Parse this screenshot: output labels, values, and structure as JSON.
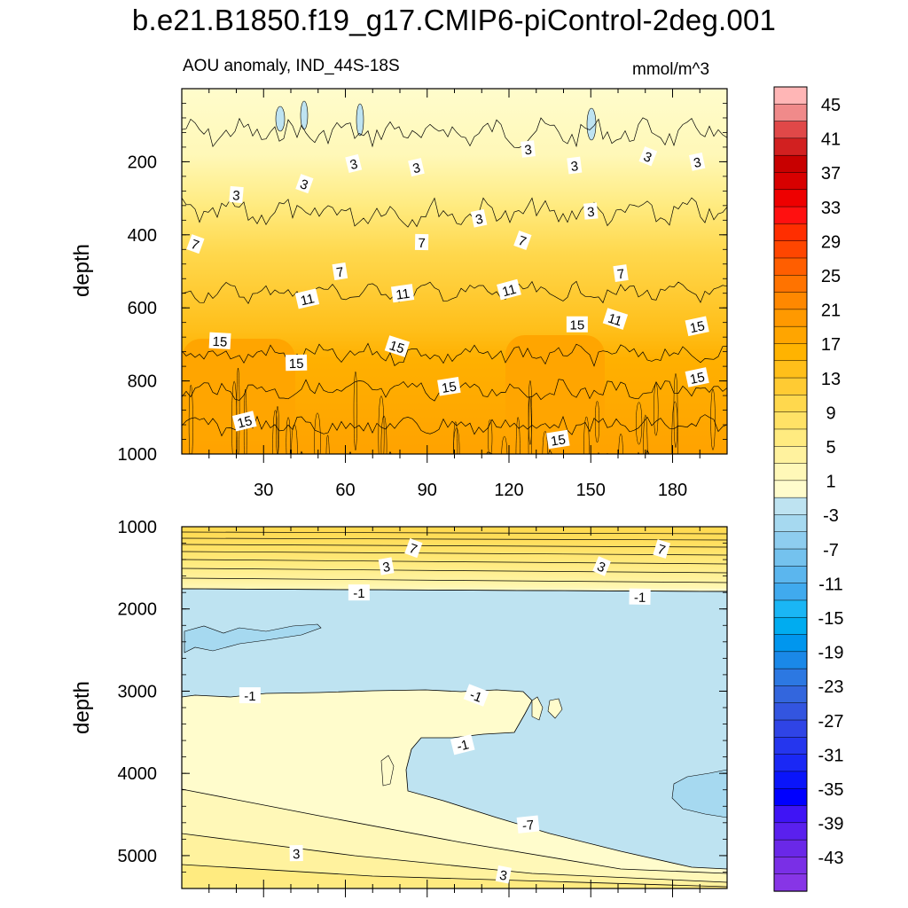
{
  "chart_data": {
    "type": "contour",
    "title": "b.e21.B1850.f19_g17.CMIP6-piControl-2deg.001",
    "subtitle": "AOU anomaly, IND_44S-18S",
    "units": "mmol/m^3",
    "colorbar": {
      "labels": [
        "45",
        "41",
        "37",
        "33",
        "29",
        "25",
        "21",
        "17",
        "13",
        "9",
        "5",
        "1",
        "-3",
        "-7",
        "-11",
        "-15",
        "-19",
        "-23",
        "-27",
        "-31",
        "-35",
        "-39",
        "-43"
      ],
      "colors": [
        "#FFB6B6",
        "#F08A8A",
        "#E04848",
        "#D22020",
        "#C80000",
        "#D80000",
        "#EE0000",
        "#FF1010",
        "#FF2E00",
        "#FF4600",
        "#FF5E00",
        "#FF7300",
        "#FF8800",
        "#FF9900",
        "#FFA500",
        "#FFB300",
        "#FFBF1A",
        "#FFCB33",
        "#FFD84D",
        "#FFE266",
        "#FFEB80",
        "#FFF29E",
        "#FFF8B8",
        "#FFFCCC",
        "#BEE3F1",
        "#A6D9F0",
        "#8ECDEF",
        "#74C2EE",
        "#5BB6EE",
        "#40AAEE",
        "#1AB6F5",
        "#00ACF0",
        "#0096EE",
        "#1A88E8",
        "#2C78E2",
        "#3366DD",
        "#3355E0",
        "#2F44E6",
        "#2536EE",
        "#1A28F5",
        "#0A15FA",
        "#0000FF",
        "#3F14F5",
        "#5A20EE",
        "#6A28E8",
        "#7A2FE6",
        "#8735E6"
      ]
    },
    "panels": [
      {
        "ylabel": "depth",
        "ylim": [
          0,
          1000
        ],
        "yticks": [
          "200",
          "400",
          "600",
          "800",
          "1000"
        ],
        "xlim": [
          0,
          200
        ],
        "xticks": [
          "30",
          "60",
          "90",
          "120",
          "150",
          "180"
        ],
        "contour_labels": [
          {
            "text": "3",
            "x": 20,
            "y": 290
          },
          {
            "text": "3",
            "x": 45,
            "y": 260
          },
          {
            "text": "3",
            "x": 63,
            "y": 205
          },
          {
            "text": "3",
            "x": 86,
            "y": 215
          },
          {
            "text": "3",
            "x": 109,
            "y": 355
          },
          {
            "text": "3",
            "x": 127,
            "y": 165
          },
          {
            "text": "3",
            "x": 144,
            "y": 210
          },
          {
            "text": "3",
            "x": 150,
            "y": 335
          },
          {
            "text": "3",
            "x": 171,
            "y": 185
          },
          {
            "text": "3",
            "x": 189,
            "y": 200
          },
          {
            "text": "7",
            "x": 5,
            "y": 425
          },
          {
            "text": "7",
            "x": 58,
            "y": 500
          },
          {
            "text": "7",
            "x": 88,
            "y": 420
          },
          {
            "text": "7",
            "x": 125,
            "y": 415
          },
          {
            "text": "7",
            "x": 161,
            "y": 505
          },
          {
            "text": "11",
            "x": 46,
            "y": 575
          },
          {
            "text": "11",
            "x": 81,
            "y": 560
          },
          {
            "text": "11",
            "x": 120,
            "y": 550
          },
          {
            "text": "11",
            "x": 159,
            "y": 630
          },
          {
            "text": "15",
            "x": 14,
            "y": 690
          },
          {
            "text": "15",
            "x": 42,
            "y": 750
          },
          {
            "text": "15",
            "x": 79,
            "y": 705
          },
          {
            "text": "15",
            "x": 98,
            "y": 815
          },
          {
            "text": "15",
            "x": 145,
            "y": 645
          },
          {
            "text": "15",
            "x": 189,
            "y": 650
          },
          {
            "text": "15",
            "x": 189,
            "y": 790
          },
          {
            "text": "15",
            "x": 23,
            "y": 910
          },
          {
            "text": "15",
            "x": 138,
            "y": 960
          }
        ]
      },
      {
        "ylabel": "depth",
        "ylim": [
          1000,
          5400
        ],
        "yticks": [
          "1000",
          "2000",
          "3000",
          "4000",
          "5000"
        ],
        "xlim": [
          0,
          200
        ],
        "xticks": [],
        "contour_labels": [
          {
            "text": "7",
            "x": 85,
            "y": 1260
          },
          {
            "text": "7",
            "x": 176,
            "y": 1270
          },
          {
            "text": "3",
            "x": 75,
            "y": 1480
          },
          {
            "text": "3",
            "x": 154,
            "y": 1480
          },
          {
            "text": "-1",
            "x": 65,
            "y": 1800
          },
          {
            "text": "-1",
            "x": 168,
            "y": 1850
          },
          {
            "text": "-1",
            "x": 25,
            "y": 3050
          },
          {
            "text": "-1",
            "x": 108,
            "y": 3050
          },
          {
            "text": "-1",
            "x": 103,
            "y": 3650
          },
          {
            "text": "-7",
            "x": 127,
            "y": 4620
          },
          {
            "text": "3",
            "x": 42,
            "y": 4970
          },
          {
            "text": "3",
            "x": 118,
            "y": 5230
          }
        ]
      }
    ]
  }
}
